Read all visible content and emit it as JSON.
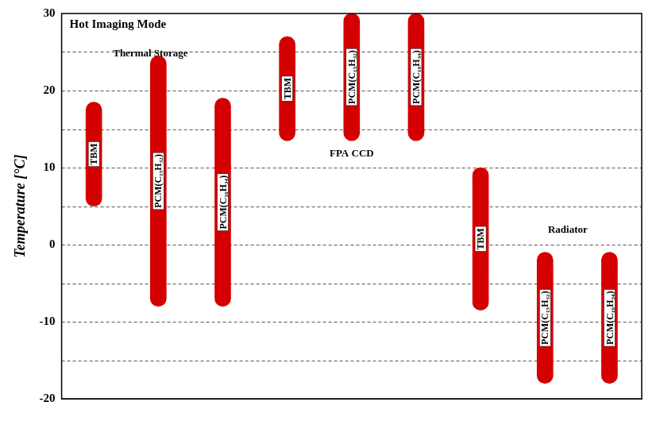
{
  "chart_data": {
    "type": "bar",
    "title": "Hot Imaging Mode",
    "y_label": "Temperature [°C]",
    "categories": [
      "TBM",
      "PCM(C₁₅H₃₂)",
      "PCM(C₁₆H₃₄)",
      "TBM",
      "PCM(C₁₅H₃₂)",
      "PCM(C₁₆H₃₄)",
      "TBM",
      "PCM(C₁₅H₃₂)",
      "PCM(C₁₆H₃₄)"
    ],
    "groups": [
      "Thermal Storage",
      "FPA CCD",
      "Radiator"
    ],
    "values": [
      [
        5,
        18.5
      ],
      [
        -8,
        24.5
      ],
      [
        -8,
        19
      ],
      [
        13.5,
        27
      ],
      [
        13.5,
        30
      ],
      [
        13.5,
        30
      ],
      [
        -8.5,
        10
      ],
      [
        -18,
        -1
      ],
      [
        -18,
        -1
      ]
    ],
    "color": "#d40000",
    "ylim": [
      -20,
      30
    ],
    "yticks": [
      -20,
      -10,
      0,
      10,
      20,
      30
    ],
    "grid": true,
    "tick_labels": "y"
  }
}
